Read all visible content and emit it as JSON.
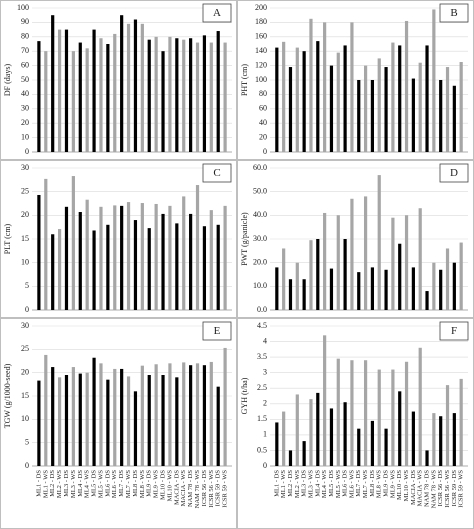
{
  "categories": [
    "ML1 - DS",
    "ML1 - WS",
    "ML2 - DS",
    "ML2 - WS",
    "ML3 - DS",
    "ML3 - WS",
    "ML4 - DS",
    "ML4 - WS",
    "ML5 - DS",
    "ML5 - WS",
    "ML6 - DS",
    "ML6 - WS",
    "ML7 - DS",
    "ML7 - WS",
    "ML8 - DS",
    "ML8 - WS",
    "ML9 - DS",
    "ML9 - WS",
    "ML10 - DS",
    "ML10 - WS",
    "MACIA - DS",
    "MACIA - WS",
    "NAM 78 - DS",
    "NAM 78 - WS",
    "ICSR 56 - DS",
    "ICSR 56 - WS",
    "ICSR 59 - DS",
    "ICSR 59 - WS"
  ],
  "chart_data": [
    {
      "type": "bar",
      "label": "A",
      "ylabel": "DF (days)",
      "ylim": [
        0,
        100
      ],
      "yticks": [
        0,
        10,
        20,
        30,
        40,
        50,
        60,
        70,
        80,
        90,
        100
      ],
      "series": [
        {
          "color": "#000000",
          "values": [
            77,
            95,
            85,
            76,
            85,
            75,
            95,
            92,
            78,
            70,
            79,
            79,
            81,
            84
          ]
        },
        {
          "color": "#a6a6a6",
          "values": [
            70,
            85,
            70,
            72,
            79,
            82,
            89,
            89,
            80,
            80,
            78,
            76,
            76,
            76
          ]
        }
      ]
    },
    {
      "type": "bar",
      "label": "B",
      "ylabel": "PHT (cm)",
      "ylim": [
        0,
        200
      ],
      "yticks": [
        0,
        20,
        40,
        60,
        80,
        100,
        120,
        140,
        160,
        180,
        200
      ],
      "series": [
        {
          "color": "#000000",
          "values": [
            145,
            118,
            140,
            154,
            120,
            148,
            100,
            100,
            118,
            148,
            102,
            148,
            100,
            92
          ]
        },
        {
          "color": "#a6a6a6",
          "values": [
            153,
            145,
            185,
            180,
            138,
            180,
            120,
            130,
            152,
            182,
            124,
            198,
            118,
            125
          ]
        }
      ]
    },
    {
      "type": "bar",
      "label": "C",
      "ylabel": "PLT (cm)",
      "ylim": [
        0,
        30
      ],
      "yticks": [
        0,
        5,
        10,
        15,
        20,
        25,
        30
      ],
      "series": [
        {
          "color": "#000000",
          "values": [
            24.3,
            16,
            21.8,
            20.7,
            16.8,
            18,
            22,
            19,
            17.3,
            20.3,
            18.3,
            20.3,
            17.7,
            18
          ]
        },
        {
          "color": "#a6a6a6",
          "values": [
            27.7,
            17.1,
            28.3,
            23.3,
            21.8,
            22.1,
            22.8,
            22.6,
            22.4,
            22,
            24,
            26.4,
            21.1,
            22
          ]
        }
      ]
    },
    {
      "type": "bar",
      "label": "D",
      "ylabel": "PWT (g/panicle)",
      "ylim": [
        0,
        60
      ],
      "yticks": [
        {
          "value": 0,
          "label": "0.0"
        },
        {
          "value": 10,
          "label": "10.0"
        },
        {
          "value": 20,
          "label": "20.0"
        },
        {
          "value": 30,
          "label": "30.0"
        },
        {
          "value": 40,
          "label": "40.0"
        },
        {
          "value": 50,
          "label": "50.0"
        },
        {
          "value": 60,
          "label": "60.0"
        }
      ],
      "series": [
        {
          "color": "#000000",
          "values": [
            18,
            13,
            13,
            30,
            17.5,
            30,
            16,
            18,
            17,
            28,
            18,
            8,
            17,
            20
          ]
        },
        {
          "color": "#a6a6a6",
          "values": [
            26,
            20,
            29.5,
            41,
            40,
            47,
            48,
            57,
            39,
            40,
            43,
            20,
            26,
            28.5
          ]
        }
      ]
    },
    {
      "type": "bar",
      "label": "E",
      "ylabel": "TGW (g/1000-seed)",
      "ylim": [
        0,
        30
      ],
      "yticks": [
        0,
        5,
        10,
        15,
        20,
        25,
        30
      ],
      "series": [
        {
          "color": "#000000",
          "values": [
            18.3,
            21.2,
            19.5,
            19.8,
            23.2,
            18.5,
            20.8,
            16,
            19.5,
            19.5,
            19,
            21.6,
            21.6,
            17
          ]
        },
        {
          "color": "#a6a6a6",
          "values": [
            23.8,
            19,
            21.2,
            20,
            22,
            20.8,
            19.2,
            21.5,
            21.8,
            22,
            22.2,
            22,
            22.3,
            25.3
          ]
        }
      ]
    },
    {
      "type": "bar",
      "label": "F",
      "ylabel": "GYH (t/ha)",
      "ylim": [
        0,
        4.5
      ],
      "yticks": [
        0,
        0.5,
        1,
        1.5,
        2,
        2.5,
        3,
        3.5,
        4,
        4.5
      ],
      "series": [
        {
          "color": "#000000",
          "values": [
            1.4,
            0.5,
            0.8,
            2.35,
            1.85,
            2.05,
            1.2,
            1.45,
            1.2,
            2.4,
            1.75,
            0.5,
            1.6,
            1.7
          ]
        },
        {
          "color": "#a6a6a6",
          "values": [
            1.75,
            2.3,
            2.15,
            4.2,
            3.45,
            3.4,
            3.4,
            3.1,
            3.1,
            3.35,
            3.8,
            1.7,
            2.6,
            2.8
          ]
        }
      ]
    }
  ]
}
